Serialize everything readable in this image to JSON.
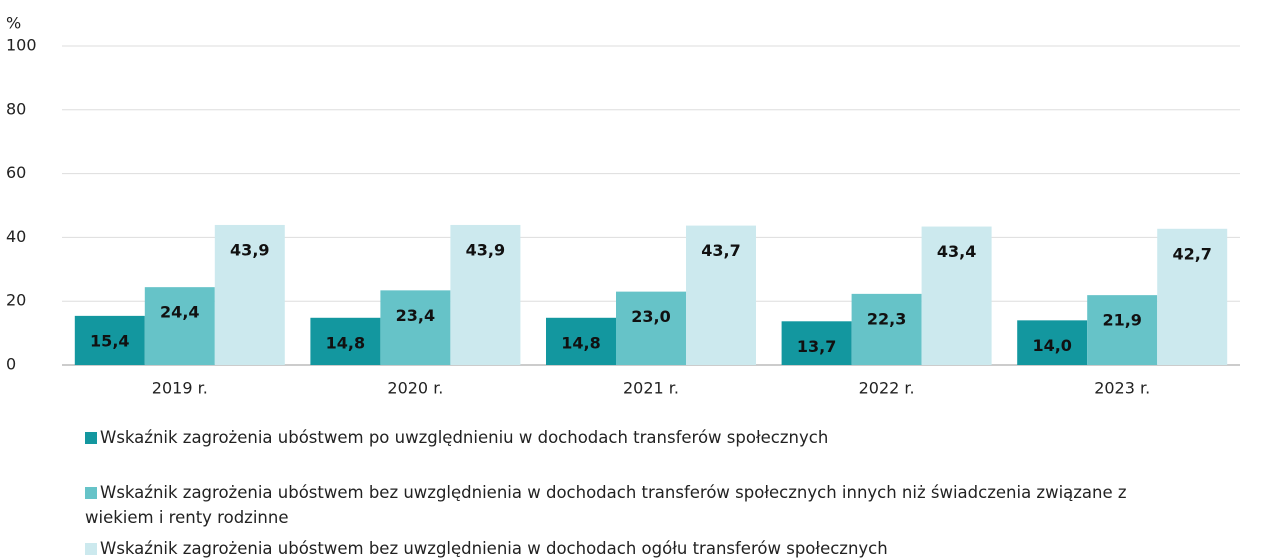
{
  "chart_data": {
    "type": "bar",
    "y_unit": "%",
    "categories": [
      "2019 r.",
      "2020 r.",
      "2021 r.",
      "2022 r.",
      "2023 r."
    ],
    "series": [
      {
        "name": "Wskaźnik zagrożenia ubóstwem po uwzględnieniu w dochodach transferów społecznych",
        "color": "#13979f",
        "values": [
          15.4,
          14.8,
          14.8,
          13.7,
          14.0
        ],
        "value_labels": [
          "15,4",
          "14,8",
          "14,8",
          "13,7",
          "14,0"
        ]
      },
      {
        "name": "Wskaźnik zagrożenia ubóstwem bez uwzględnienia w dochodach transferów społecznych innych niż świadczenia związane z wiekiem i renty rodzinne",
        "color": "#66c3c8",
        "values": [
          24.4,
          23.4,
          23.0,
          22.3,
          21.9
        ],
        "value_labels": [
          "24,4",
          "23,4",
          "23,0",
          "22,3",
          "21,9"
        ]
      },
      {
        "name": "Wskaźnik zagrożenia ubóstwem bez uwzględnienia w dochodach ogółu  transferów społecznych",
        "color": "#cce9ee",
        "values": [
          43.9,
          43.9,
          43.7,
          43.4,
          42.7
        ],
        "value_labels": [
          "43,9",
          "43,9",
          "43,7",
          "43,4",
          "42,7"
        ]
      }
    ],
    "ylim": [
      0,
      100
    ],
    "yticks": [
      0,
      20,
      40,
      60,
      80,
      100
    ],
    "grid": true
  }
}
